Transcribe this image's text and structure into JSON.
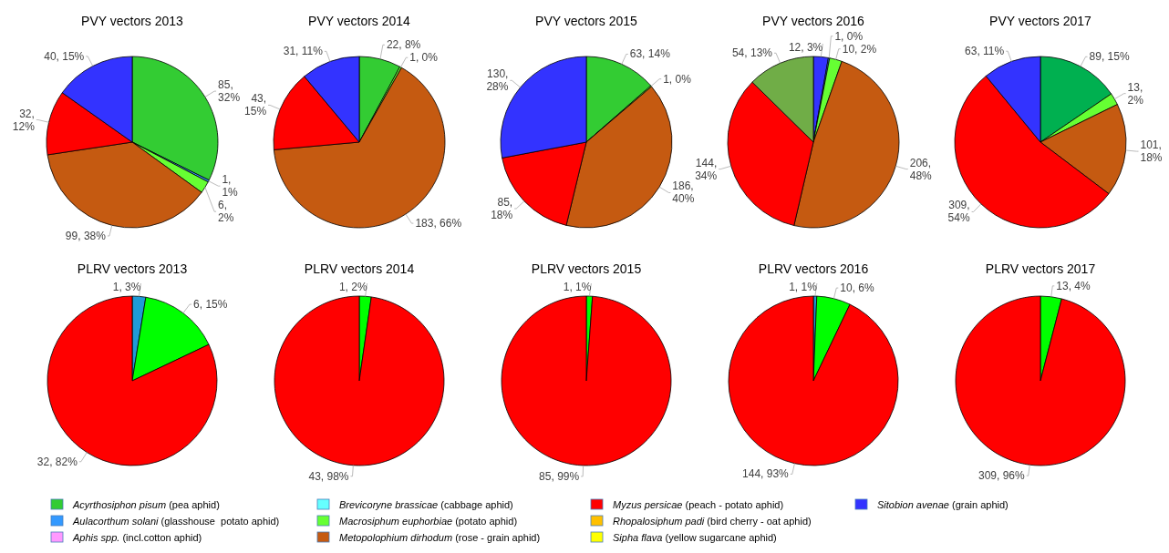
{
  "chart_data": [
    {
      "type": "pie",
      "title": "PVY vectors 2013",
      "legend": "bottom",
      "categories": [
        "Acyrthosiphon pisum (pea aphid)",
        "Aulacorthum solani (glasshouse  potato aphid)",
        "Aphis spp. (incl.cotton aphid)",
        "Brevicoryne brassicae (cabbage aphid)",
        "Macrosiphum euphorbiae (potato aphid)",
        "Metopolophium dirhodum (rose - grain aphid)",
        "Myzus persicae (peach - potato aphid)",
        "Rhopalosiphum padi (bird cherry - oat aphid)",
        "Sipha flava (yellow sugarcane aphid)",
        "Sitobion avenae (grain aphid)"
      ],
      "values": [
        85,
        1,
        null,
        null,
        6,
        99,
        32,
        null,
        null,
        40
      ],
      "colors": [
        "#33cc33",
        "#3399ff",
        "#ff99ff",
        "#66ffff",
        "#66ff33",
        "#c55a11",
        "#ff0000",
        "#ffc000",
        "#ffff00",
        "#3333ff"
      ],
      "value_labels": [
        "85, 32%",
        "1, 1%",
        null,
        null,
        "6, 2%",
        "99, 38%",
        "32, 12%",
        null,
        null,
        "40, 15%"
      ]
    },
    {
      "type": "pie",
      "title": "PVY vectors 2014",
      "categories": [
        null,
        null,
        null,
        null,
        null
      ],
      "values": [
        22,
        1,
        183,
        43,
        31
      ],
      "colors": [
        "#33cc33",
        "#66ff33",
        "#c55a11",
        "#ff0000",
        "#3333ff"
      ],
      "value_labels": [
        "22, 8%",
        "1, 0%",
        "183, 66%",
        "43, 15%",
        "31, 11%"
      ]
    },
    {
      "type": "pie",
      "title": "PVY vectors 2015",
      "categories": [
        null,
        null,
        null,
        null,
        null
      ],
      "values": [
        63,
        1,
        186,
        85,
        130
      ],
      "colors": [
        "#33cc33",
        "#66ff33",
        "#c55a11",
        "#ff0000",
        "#3333ff"
      ],
      "value_labels": [
        "63, 14%",
        "1, 0%",
        "186, 40%",
        "85, 18%",
        "130, 28%"
      ]
    },
    {
      "type": "pie",
      "title": "PVY vectors 2016",
      "categories": [
        null,
        null,
        null,
        null,
        null,
        null
      ],
      "values": [
        12,
        1,
        10,
        206,
        144,
        54
      ],
      "colors": [
        "#3333ff",
        "#3399ff",
        "#66ff33",
        "#c55a11",
        "#ff0000",
        "#70ad47"
      ],
      "value_labels": [
        "12, 3%",
        "1, 0%",
        "10, 2%",
        "206, 48%",
        "144, 34%",
        "54, 13%"
      ]
    },
    {
      "type": "pie",
      "title": "PVY vectors 2017",
      "categories": [
        null,
        null,
        null,
        null,
        null
      ],
      "values": [
        89,
        13,
        101,
        309,
        63
      ],
      "colors": [
        "#00b050",
        "#66ff33",
        "#c55a11",
        "#ff0000",
        "#3333ff"
      ],
      "value_labels": [
        "89, 15%",
        "13, 2%",
        "101, 18%",
        "309, 54%",
        "63, 11%"
      ]
    },
    {
      "type": "pie",
      "title": "PLRV vectors 2013",
      "categories": [
        null,
        null,
        null
      ],
      "values": [
        1,
        6,
        32
      ],
      "colors": [
        "#1f9bd7",
        "#00ff00",
        "#ff0000"
      ],
      "value_labels": [
        "1, 3%",
        "6, 15%",
        "32, 82%"
      ]
    },
    {
      "type": "pie",
      "title": "PLRV vectors 2014",
      "categories": [
        null,
        null
      ],
      "values": [
        1,
        43
      ],
      "colors": [
        "#00ff00",
        "#ff0000"
      ],
      "value_labels": [
        "1, 2%",
        "43, 98%"
      ]
    },
    {
      "type": "pie",
      "title": "PLRV vectors 2015",
      "categories": [
        null,
        null
      ],
      "values": [
        1,
        85
      ],
      "colors": [
        "#00ff00",
        "#ff0000"
      ],
      "value_labels": [
        "1, 1%",
        "85, 99%"
      ]
    },
    {
      "type": "pie",
      "title": "PLRV vectors 2016",
      "categories": [
        null,
        null,
        null
      ],
      "values": [
        1,
        10,
        144
      ],
      "colors": [
        "#1f9bd7",
        "#00ff00",
        "#ff0000"
      ],
      "value_labels": [
        "1, 1%",
        "10, 6%",
        "144, 93%"
      ]
    },
    {
      "type": "pie",
      "title": "PLRV vectors 2017",
      "categories": [
        null,
        null
      ],
      "values": [
        13,
        309
      ],
      "colors": [
        "#00ff00",
        "#ff0000"
      ],
      "value_labels": [
        "13, 4%",
        "309, 96%"
      ]
    }
  ]
}
